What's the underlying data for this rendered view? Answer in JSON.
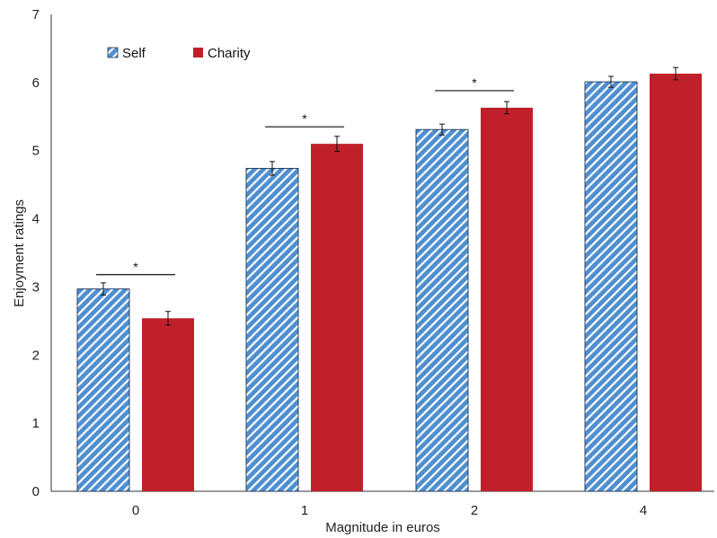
{
  "chart_data": {
    "type": "bar",
    "xlabel": "Magnitude in euros",
    "ylabel": "Enjoyment ratings",
    "categories": [
      "0",
      "1",
      "2",
      "4"
    ],
    "ylim": [
      0,
      7
    ],
    "yticks": [
      "0",
      "1",
      "2",
      "3",
      "4",
      "5",
      "6",
      "7"
    ],
    "grid": false,
    "legend_position": "top-left",
    "series": [
      {
        "name": "Self",
        "pattern": "diagonal-stripes",
        "color": "#4f8fcf",
        "values": [
          2.97,
          4.74,
          5.31,
          6.01
        ],
        "errors": [
          0.09,
          0.1,
          0.08,
          0.08
        ]
      },
      {
        "name": "Charity",
        "pattern": "solid",
        "color": "#c0202a",
        "values": [
          2.54,
          5.1,
          5.63,
          6.13
        ],
        "errors": [
          0.1,
          0.11,
          0.09,
          0.09
        ]
      }
    ],
    "significance": [
      {
        "category": "0",
        "label": "*",
        "y": 3.18
      },
      {
        "category": "1",
        "label": "*",
        "y": 5.35
      },
      {
        "category": "2",
        "label": "*",
        "y": 5.88
      }
    ]
  }
}
